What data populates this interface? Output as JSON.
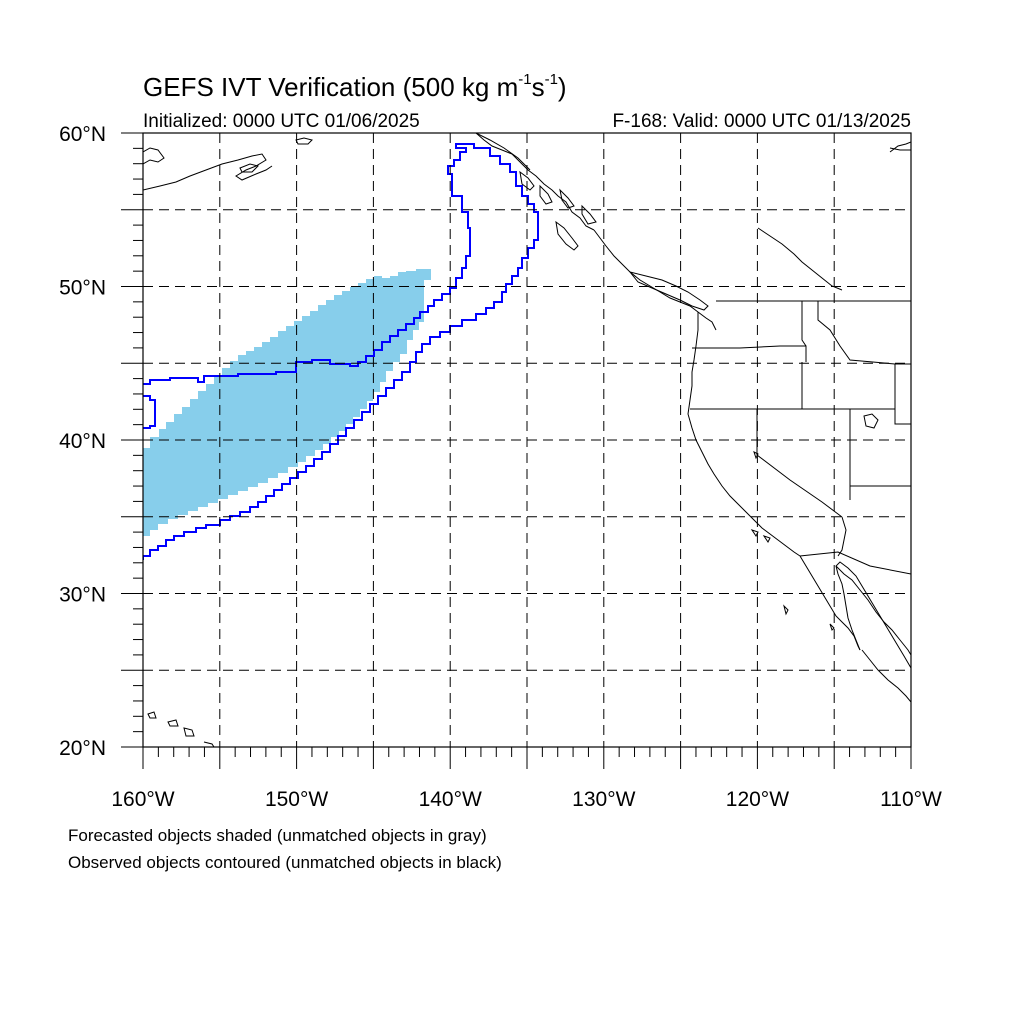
{
  "header": {
    "title_main": "GEFS IVT Verification (500 kg m",
    "title_exp1": "-1",
    "title_mid": "s",
    "title_exp2": "-1",
    "title_end": ")",
    "initialized": "Initialized: 0000 UTC 01/06/2025",
    "valid": "F-168: Valid: 0000 UTC 01/13/2025"
  },
  "map": {
    "projection": "cylindrical-equidistant",
    "lon_range": [
      -160,
      -110
    ],
    "lat_range": [
      20,
      60
    ],
    "grid_lines": "dashed",
    "lat_labels": [
      "60°N",
      "50°N",
      "40°N",
      "30°N",
      "20°N"
    ],
    "lon_labels": [
      "160°W",
      "150°W",
      "140°W",
      "130°W",
      "120°W",
      "110°W"
    ],
    "colors": {
      "forecast_fill": "#87ceeb",
      "observed_contour": "#0000ff",
      "coastline": "#000000"
    }
  },
  "legend": {
    "line1": "Forecasted objects shaded (unmatched objects in gray)",
    "line2": "Observed objects contoured (unmatched objects in black)"
  }
}
